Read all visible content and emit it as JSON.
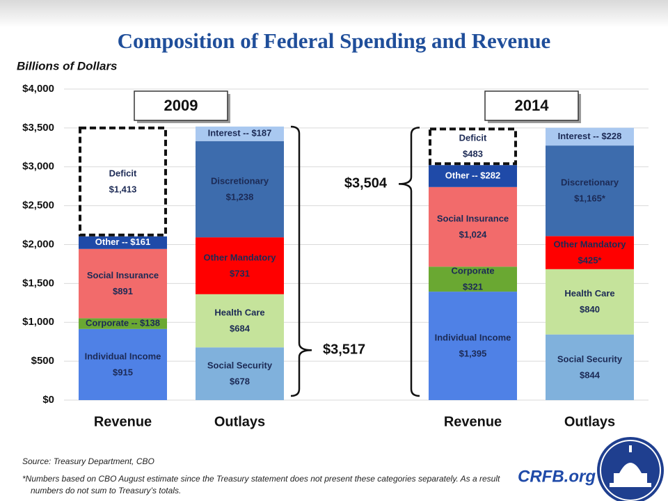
{
  "chart_data": {
    "type": "stacked-bar",
    "title": "Composition of Federal Spending and Revenue",
    "y_axis_label": "Billions of Dollars",
    "ylim": [
      0,
      4000
    ],
    "yticks": [
      {
        "value": 0,
        "label": "$0"
      },
      {
        "value": 500,
        "label": "$500"
      },
      {
        "value": 1000,
        "label": "$1,000"
      },
      {
        "value": 1500,
        "label": "$1,500"
      },
      {
        "value": 2000,
        "label": "$2,000"
      },
      {
        "value": 2500,
        "label": "$2,500"
      },
      {
        "value": 3000,
        "label": "$3,000"
      },
      {
        "value": 3500,
        "label": "$3,500"
      },
      {
        "value": 4000,
        "label": "$4,000"
      }
    ],
    "grid": true,
    "groups": [
      "2009",
      "2014"
    ],
    "bars": [
      {
        "category": "Revenue",
        "segments": [
          {
            "name": "Individual Income",
            "value": 915,
            "value_label": "$915",
            "color": "#4f81e6"
          },
          {
            "value": 138,
            "value_label": "Corporate -- $138",
            "color": "#6aa832"
          },
          {
            "name": "Social Insurance",
            "value": 891,
            "value_label": "$891",
            "color": "#f26b6b"
          },
          {
            "value": 161,
            "value_label": "Other -- $161",
            "color": "#1f4aa8",
            "text_color": "#ffffff"
          },
          {
            "name": "Deficit",
            "value": 1413,
            "value_label": "$1,413",
            "outline": "dashed"
          }
        ]
      },
      {
        "category": "Outlays",
        "segments": [
          {
            "name": "Social Security",
            "value": 678,
            "value_label": "$678",
            "color": "#80b1dc"
          },
          {
            "name": "Health Care",
            "value": 684,
            "value_label": "$684",
            "color": "#c5e39b"
          },
          {
            "name": "Other Mandatory",
            "value": 731,
            "value_label": "$731",
            "color": "#ff0000"
          },
          {
            "name": "Discretionary",
            "value": 1238,
            "value_label": "$1,238",
            "color": "#3d6cad"
          },
          {
            "value": 187,
            "value_label": "Interest -- $187",
            "color": "#a9c8f0"
          }
        ]
      },
      {
        "category": "Revenue",
        "segments": [
          {
            "name": "Individual Income",
            "value": 1395,
            "value_label": "$1,395",
            "color": "#4f81e6"
          },
          {
            "name": "Corporate",
            "value": 321,
            "value_label": "$321",
            "color": "#6aa832"
          },
          {
            "name": "Social Insurance",
            "value": 1024,
            "value_label": "$1,024",
            "color": "#f26b6b"
          },
          {
            "value": 282,
            "value_label": "Other -- $282",
            "color": "#1f4aa8",
            "text_color": "#ffffff"
          },
          {
            "name": "Deficit",
            "value": 483,
            "value_label": "$483",
            "outline": "dashed"
          }
        ]
      },
      {
        "category": "Outlays",
        "segments": [
          {
            "name": "Social Security",
            "value": 844,
            "value_label": "$844",
            "color": "#80b1dc"
          },
          {
            "name": "Health Care",
            "value": 840,
            "value_label": "$840",
            "color": "#c5e39b"
          },
          {
            "name": "Other Mandatory",
            "value": 425,
            "value_label": "$425*",
            "color": "#ff0000"
          },
          {
            "name": "Discretionary",
            "value": 1165,
            "value_label": "$1,165*",
            "color": "#3d6cad"
          },
          {
            "value": 228,
            "value_label": "Interest -- $228",
            "color": "#a9c8f0"
          }
        ]
      }
    ],
    "totals": [
      {
        "value": 3517,
        "label": "$3,517"
      },
      {
        "value": 3504,
        "label": "$3,504"
      }
    ],
    "source": "Source: Treasury Department, CBO",
    "footnote": "*Numbers based on CBO August estimate since the Treasury statement does not present these categories separately.  As a result numbers do not sum to Treasury’s totals.",
    "brand": "CRFB.org"
  }
}
